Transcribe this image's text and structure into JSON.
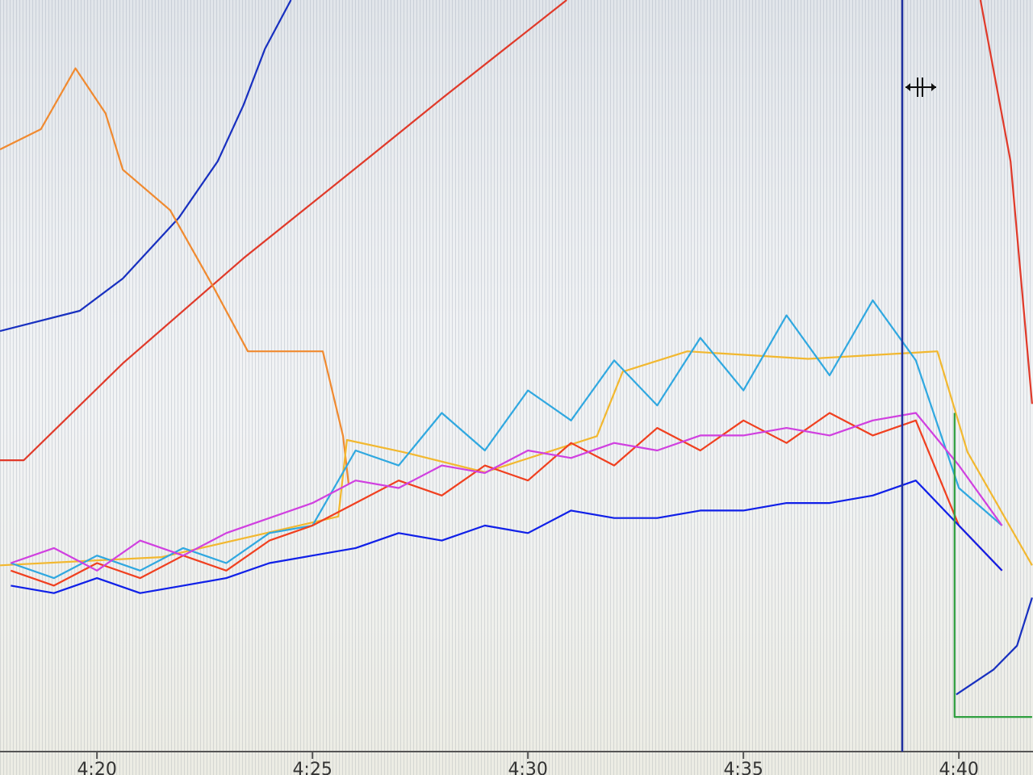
{
  "chart_data": {
    "type": "line",
    "xlim": [
      17.75,
      41.72
    ],
    "ylim": [
      0,
      100
    ],
    "xticks": [
      {
        "value": 20,
        "label": "4:20"
      },
      {
        "value": 25,
        "label": "4:25"
      },
      {
        "value": 30,
        "label": "4:30"
      },
      {
        "value": 35,
        "label": "4:35"
      },
      {
        "value": 40,
        "label": "4:40"
      }
    ],
    "series": [
      {
        "color": "#1830c0",
        "x": [
          17.75,
          19.6,
          20.6,
          21.9,
          22.8,
          23.4,
          23.9,
          24.5,
          30,
          39.94,
          40.8,
          41.35,
          41.7
        ],
        "values": [
          55.9,
          58.6,
          62.9,
          71.0,
          78.5,
          86.0,
          93.5,
          100,
          null,
          7.5,
          10.8,
          14.0,
          20.4
        ]
      },
      {
        "color": "#e03a2a",
        "x": [
          17.75,
          18.3,
          20.6,
          23.4,
          26.2,
          28.05,
          30.9,
          35,
          40.5,
          41.2,
          41.7
        ],
        "values": [
          38.7,
          38.7,
          51.6,
          65.6,
          78.5,
          87.1,
          100,
          null,
          100,
          78.5,
          46.2
        ]
      },
      {
        "color": "#f08a30",
        "x": [
          17.75,
          18.7,
          19.5,
          20.2,
          20.6,
          21.7,
          22.7,
          23.5,
          25.24,
          25.71,
          25.84
        ],
        "values": [
          80.1,
          82.8,
          90.9,
          84.9,
          77.4,
          72.0,
          61.8,
          53.2,
          53.2,
          41.9,
          35.5
        ]
      },
      {
        "color": "#f2b830",
        "x": [
          17.75,
          21.5,
          25.6,
          25.8,
          27.1,
          29.0,
          31.6,
          32.2,
          33.7,
          36.5,
          39.5,
          40.2,
          41.7
        ],
        "values": [
          24.7,
          25.8,
          31.2,
          41.4,
          39.8,
          37.1,
          41.9,
          50.5,
          53.2,
          52.2,
          53.2,
          39.8,
          24.7
        ]
      },
      {
        "color": "#30a8e0",
        "x": [
          18,
          19,
          20,
          21,
          22,
          23,
          24,
          25,
          26,
          27,
          28,
          29,
          30,
          31,
          32,
          33,
          34,
          35,
          36,
          37,
          38,
          39,
          40,
          41
        ],
        "values": [
          25,
          23,
          26,
          24,
          27,
          25,
          29,
          30,
          40,
          38,
          45,
          40,
          48,
          44,
          52,
          46,
          55,
          48,
          58,
          50,
          60,
          52,
          35,
          30
        ]
      },
      {
        "color": "#f04020",
        "x": [
          18,
          19,
          20,
          21,
          22,
          23,
          24,
          25,
          26,
          27,
          28,
          29,
          30,
          31,
          32,
          33,
          34,
          35,
          36,
          37,
          38,
          39,
          40,
          41
        ],
        "values": [
          24,
          22,
          25,
          23,
          26,
          24,
          28,
          30,
          33,
          36,
          34,
          38,
          36,
          41,
          38,
          43,
          40,
          44,
          41,
          45,
          42,
          44,
          30,
          24
        ]
      },
      {
        "color": "#d040e0",
        "x": [
          18,
          19,
          20,
          21,
          22,
          23,
          24,
          25,
          26,
          27,
          28,
          29,
          30,
          31,
          32,
          33,
          34,
          35,
          36,
          37,
          38,
          39,
          40,
          41
        ],
        "values": [
          25,
          27,
          24,
          28,
          26,
          29,
          31,
          33,
          36,
          35,
          38,
          37,
          40,
          39,
          41,
          40,
          42,
          42,
          43,
          42,
          44,
          45,
          38,
          30
        ]
      },
      {
        "color": "#1020e8",
        "x": [
          18,
          19,
          20,
          21,
          22,
          23,
          24,
          25,
          26,
          27,
          28,
          29,
          30,
          31,
          32,
          33,
          34,
          35,
          36,
          37,
          38,
          39,
          40,
          41
        ],
        "values": [
          22,
          21,
          23,
          21,
          22,
          23,
          25,
          26,
          27,
          29,
          28,
          30,
          29,
          32,
          31,
          31,
          32,
          32,
          33,
          33,
          34,
          36,
          30,
          24
        ]
      },
      {
        "color": "#30a040",
        "x": [
          39.9,
          39.9,
          41.7
        ],
        "values": [
          45,
          4.5,
          4.5
        ]
      }
    ]
  }
}
